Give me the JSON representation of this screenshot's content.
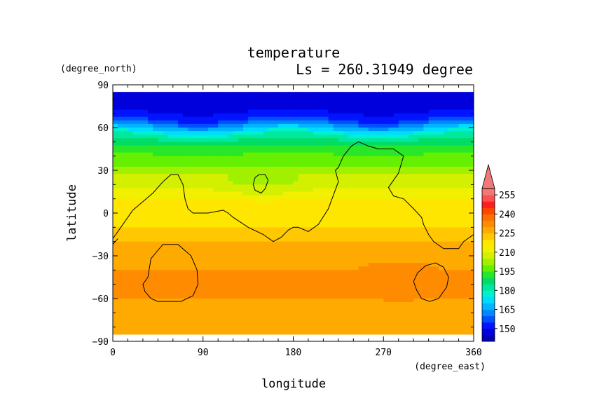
{
  "chart_data": {
    "type": "heatmap",
    "title": "temperature",
    "subtitle": "Ls = 260.31949 degree",
    "xlabel": "longitude",
    "ylabel": "latitude",
    "xunits": "(degree_east)",
    "yunits": "(degree_north)",
    "xlim": [
      0,
      360
    ],
    "ylim": [
      -90,
      90
    ],
    "data_lat_range": [
      -85,
      85
    ],
    "xticks": [
      0,
      90,
      180,
      270,
      360
    ],
    "yticks": [
      90,
      60,
      30,
      0,
      -30,
      -60,
      -90
    ],
    "xtick_labels": [
      "0",
      "90",
      "180",
      "270",
      "360"
    ],
    "ytick_labels": [
      "90",
      "60",
      "30",
      "0",
      "−30",
      "−60",
      "−90"
    ],
    "colorbar": {
      "levels": [
        140,
        145,
        150,
        155,
        160,
        165,
        170,
        175,
        180,
        185,
        190,
        195,
        200,
        205,
        210,
        215,
        220,
        225,
        230,
        235,
        240,
        245,
        250,
        255,
        260
      ],
      "colors": [
        "#0000b4",
        "#0000dc",
        "#0014ff",
        "#0050ff",
        "#0088ff",
        "#00b4ff",
        "#00dcff",
        "#00f0d2",
        "#00e8a0",
        "#00dc64",
        "#28e628",
        "#64f000",
        "#a0f000",
        "#d2f000",
        "#f0f000",
        "#ffe600",
        "#ffc800",
        "#ffaa00",
        "#ff8c00",
        "#ff6e00",
        "#ff4600",
        "#ff1e1e",
        "#ff5050",
        "#f07878"
      ],
      "tick_labels": [
        "150",
        "165",
        "180",
        "195",
        "210",
        "225",
        "240",
        "255"
      ],
      "extend": "max",
      "extend_color": "#f07878"
    },
    "zonal_profile": {
      "lat": [
        85,
        70,
        65,
        62,
        58,
        55,
        50,
        45,
        40,
        35,
        30,
        25,
        20,
        15,
        10,
        5,
        0,
        -5,
        -10,
        -15,
        -20,
        -25,
        -30,
        -40,
        -50,
        -60,
        -70,
        -80,
        -85
      ],
      "temperature": [
        148,
        150,
        156,
        163,
        172,
        180,
        187,
        192,
        196,
        199,
        202,
        206,
        208,
        212,
        215,
        217,
        218,
        219,
        220,
        222,
        224,
        228,
        229,
        230,
        231,
        230,
        229,
        229,
        229
      ]
    },
    "warm_regions": [
      {
        "lon": 285,
        "lat": -48,
        "lon_radius": 52,
        "lat_radius": 14,
        "temperature": 235
      },
      {
        "lon": 40,
        "lat": -42,
        "lon_radius": 30,
        "lat_radius": 12,
        "temperature": 229
      }
    ],
    "cool_regions": [
      {
        "lon": 150,
        "lat": 18,
        "lon_radius": 60,
        "lat_radius": 10,
        "temperature_delta": -4
      }
    ],
    "topography_contour": {
      "level": 0,
      "lines": [
        {
          "lon": [
            0,
            10,
            20,
            30,
            40,
            50,
            58,
            65,
            70,
            72,
            75,
            80,
            85,
            95,
            110,
            115,
            120,
            135,
            150,
            160,
            168,
            175,
            180,
            185,
            195,
            205,
            215,
            225,
            222,
            225,
            230,
            238,
            245,
            255,
            265,
            280,
            290,
            285,
            275,
            280,
            290,
            300,
            308,
            310,
            315,
            320,
            330,
            345,
            350,
            360
          ],
          "lat": [
            -18,
            -8,
            2,
            8,
            14,
            22,
            27,
            27,
            20,
            10,
            3,
            0,
            0,
            0,
            2,
            0,
            -3,
            -10,
            -15,
            -20,
            -17,
            -12,
            -10,
            -10,
            -13,
            -8,
            3,
            22,
            30,
            32,
            40,
            47,
            50,
            47,
            45,
            45,
            40,
            28,
            18,
            12,
            10,
            3,
            -3,
            -8,
            -15,
            -20,
            -25,
            -25,
            -20,
            -15
          ]
        },
        {
          "lon": [
            0,
            5
          ],
          "lat": [
            -22,
            -18
          ]
        },
        {
          "lon": [
            35,
            30,
            32,
            38,
            45,
            55,
            68,
            80,
            85,
            84,
            78,
            65,
            50,
            38,
            35
          ],
          "lat": [
            -45,
            -50,
            -55,
            -60,
            -62,
            -62,
            -62,
            -58,
            -50,
            -40,
            -30,
            -22,
            -22,
            -32,
            -45
          ]
        },
        {
          "lon": [
            142,
            140,
            142,
            148,
            152,
            155,
            152,
            146,
            142
          ],
          "lat": [
            25,
            20,
            16,
            14,
            17,
            23,
            27,
            27,
            25
          ]
        },
        {
          "lon": [
            300,
            303,
            308,
            316,
            325,
            333,
            335,
            330,
            322,
            312,
            304,
            300
          ],
          "lat": [
            -48,
            -54,
            -60,
            -62,
            -60,
            -52,
            -45,
            -38,
            -35,
            -37,
            -42,
            -48
          ]
        }
      ]
    }
  }
}
